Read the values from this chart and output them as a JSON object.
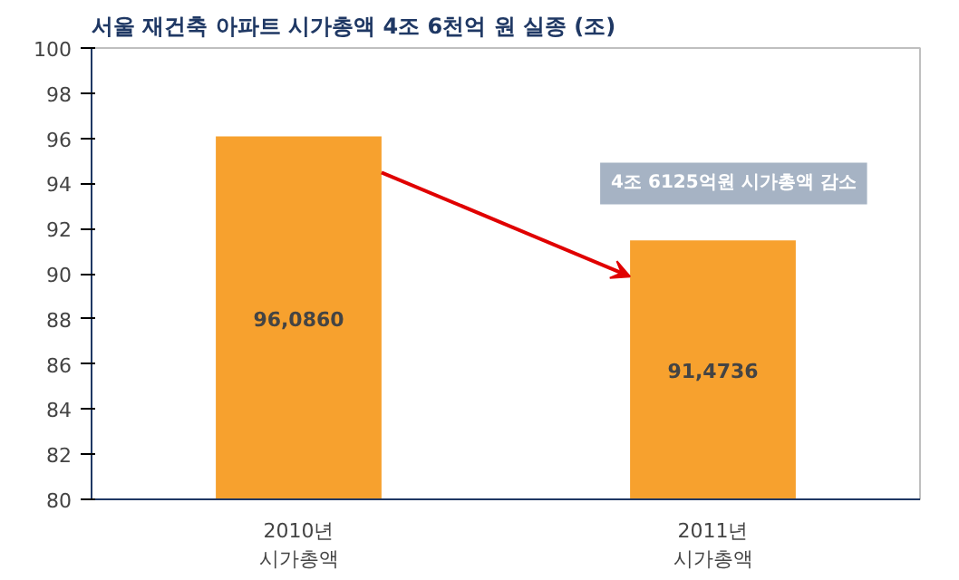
{
  "chart_data": {
    "type": "bar",
    "title": "서울 재건축 아파트 시가총액 4조 6천억 원 실종 (조)",
    "categories": [
      "2010년\n시가총액",
      "2011년\n시가총액"
    ],
    "values": [
      96.086,
      91.4736
    ],
    "value_labels": [
      "96,0860",
      "91,4736"
    ],
    "color": "#f7a12e",
    "ylim": [
      80,
      100
    ],
    "yticks": [
      80,
      82,
      84,
      86,
      88,
      90,
      92,
      94,
      96,
      98,
      100
    ],
    "annotations": [
      "4조 6125억원 시가총액 감소"
    ],
    "grid": false
  }
}
